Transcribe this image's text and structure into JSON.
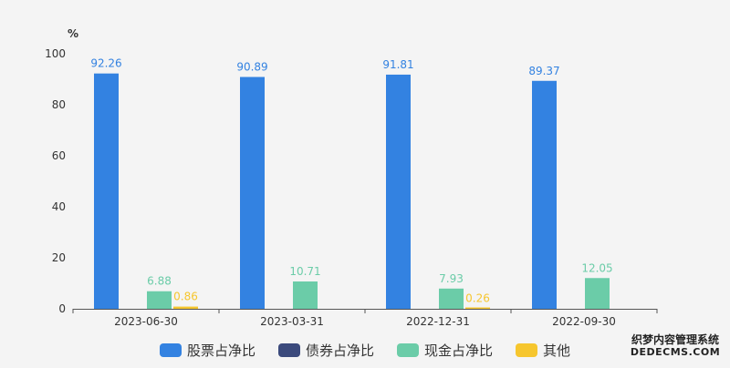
{
  "chart_data": {
    "type": "bar",
    "ylabel": "%",
    "ylim": [
      0,
      100
    ],
    "yticks": [
      0,
      20,
      40,
      60,
      80,
      100
    ],
    "categories": [
      "2023-06-30",
      "2023-03-31",
      "2022-12-31",
      "2022-09-30"
    ],
    "series": [
      {
        "name": "股票占净比",
        "color": "#3382e1",
        "values": [
          92.26,
          90.89,
          91.81,
          89.37
        ]
      },
      {
        "name": "债券占净比",
        "color": "#3b4a7c",
        "values": [
          null,
          null,
          null,
          null
        ]
      },
      {
        "name": "现金占净比",
        "color": "#6bcca8",
        "values": [
          6.88,
          10.71,
          7.93,
          12.05
        ]
      },
      {
        "name": "其他",
        "color": "#f6c62e",
        "values": [
          0.86,
          null,
          0.26,
          null
        ]
      }
    ],
    "legend_position": "bottom-center",
    "grid": false
  },
  "watermark": {
    "line1": "织梦内容管理系统",
    "line2": "DEDECMS.COM"
  }
}
